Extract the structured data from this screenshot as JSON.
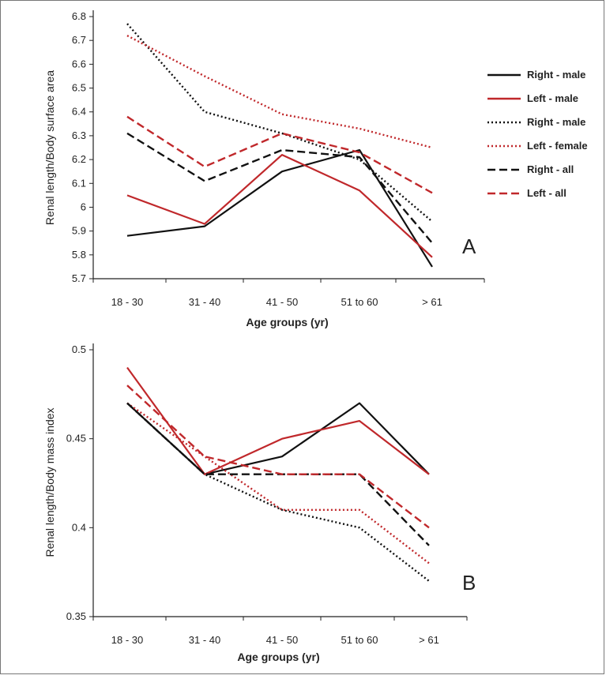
{
  "colors": {
    "black": "#111111",
    "red": "#c0282b"
  },
  "chart_data": [
    {
      "type": "line",
      "panel_label": "A",
      "categories": [
        "18 - 30",
        "31 - 40",
        "41 - 50",
        "51 to 60",
        "> 61"
      ],
      "xlabel": "Age groups (yr)",
      "ylabel": "Renal length/Body surface area",
      "ylim": [
        5.7,
        6.8
      ],
      "yticks": [
        5.7,
        5.8,
        5.9,
        6.0,
        6.1,
        6.2,
        6.3,
        6.4,
        6.5,
        6.6,
        6.7,
        6.8
      ],
      "ytick_labels": [
        "5.7",
        "5.8",
        "5.9",
        "6",
        "6.1",
        "6.2",
        "6.3",
        "6.4",
        "6.5",
        "6.6",
        "6.7",
        "6.8"
      ],
      "legend_position": "right",
      "series": [
        {
          "name": "Right - male",
          "color": "black",
          "style": "solid",
          "values": [
            5.88,
            5.92,
            6.15,
            6.24,
            5.75
          ]
        },
        {
          "name": "Left - male",
          "color": "red",
          "style": "solid",
          "values": [
            6.05,
            5.93,
            6.22,
            6.07,
            5.79
          ]
        },
        {
          "name": "Right - male",
          "color": "black",
          "style": "dotted",
          "values": [
            6.77,
            6.4,
            6.31,
            6.2,
            5.94
          ]
        },
        {
          "name": "Left - female",
          "color": "red",
          "style": "dotted",
          "values": [
            6.72,
            6.55,
            6.39,
            6.33,
            6.25
          ]
        },
        {
          "name": "Right - all",
          "color": "black",
          "style": "dashed",
          "values": [
            6.31,
            6.11,
            6.24,
            6.21,
            5.85
          ]
        },
        {
          "name": "Left - all",
          "color": "red",
          "style": "dashed",
          "values": [
            6.38,
            6.17,
            6.31,
            6.23,
            6.06
          ]
        }
      ]
    },
    {
      "type": "line",
      "panel_label": "B",
      "categories": [
        "18 - 30",
        "31 - 40",
        "41 - 50",
        "51 to 60",
        "> 61"
      ],
      "xlabel": "Age groups (yr)",
      "ylabel": "Renal length/Body mass index",
      "ylim": [
        0.35,
        0.5
      ],
      "yticks": [
        0.35,
        0.4,
        0.45,
        0.5
      ],
      "ytick_labels": [
        "0.35",
        "0.4",
        "0.45",
        "0.5"
      ],
      "series": [
        {
          "name": "Right - male",
          "color": "black",
          "style": "solid",
          "values": [
            0.47,
            0.43,
            0.44,
            0.47,
            0.43
          ]
        },
        {
          "name": "Left - male",
          "color": "red",
          "style": "solid",
          "values": [
            0.49,
            0.43,
            0.45,
            0.46,
            0.43
          ]
        },
        {
          "name": "Right - male",
          "color": "black",
          "style": "dotted",
          "values": [
            0.47,
            0.43,
            0.41,
            0.4,
            0.37
          ]
        },
        {
          "name": "Left - female",
          "color": "red",
          "style": "dotted",
          "values": [
            0.47,
            0.44,
            0.41,
            0.41,
            0.38
          ]
        },
        {
          "name": "Right - all",
          "color": "black",
          "style": "dashed",
          "values": [
            0.47,
            0.43,
            0.43,
            0.43,
            0.39
          ]
        },
        {
          "name": "Left - all",
          "color": "red",
          "style": "dashed",
          "values": [
            0.48,
            0.44,
            0.43,
            0.43,
            0.4
          ]
        }
      ]
    }
  ]
}
